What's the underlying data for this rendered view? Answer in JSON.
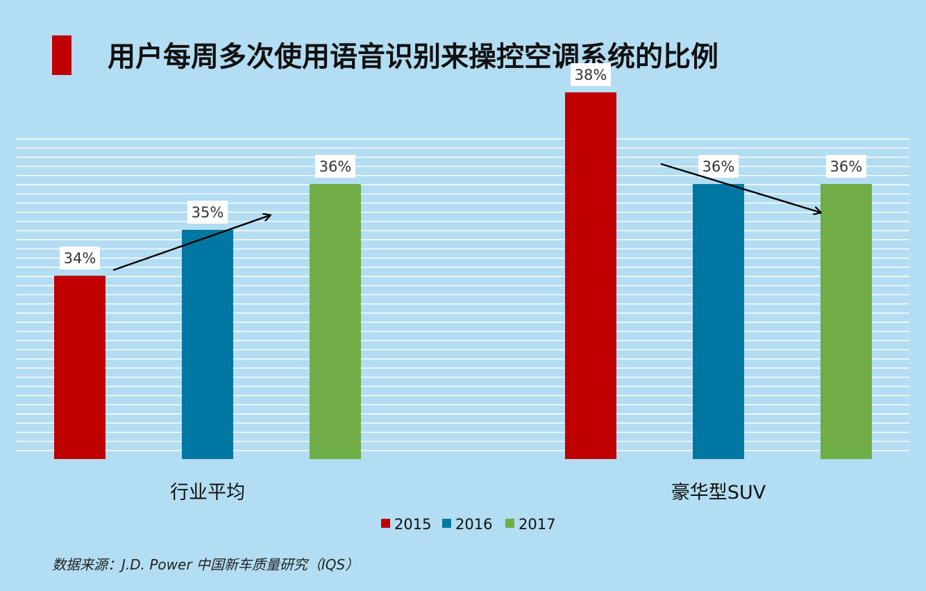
{
  "title": "用户每周多次使用语音识别来操控空调系统的比例",
  "source": "数据来源：J.D. Power 中国新车质量研究（IQS）",
  "colors": {
    "background": "#b3ddf2",
    "accent": "#c00000",
    "gridline": "#ffffff",
    "arrow": "#000000"
  },
  "chart_data": {
    "type": "bar",
    "categories": [
      "行业平均",
      "豪华型SUV"
    ],
    "series": [
      {
        "name": "2015",
        "color": "#c00000",
        "values": [
          34,
          38
        ],
        "labels": [
          "34%",
          "38%"
        ]
      },
      {
        "name": "2016",
        "color": "#0077a3",
        "values": [
          35,
          36
        ],
        "labels": [
          "35%",
          "36%"
        ]
      },
      {
        "name": "2017",
        "color": "#70ad47",
        "values": [
          36,
          36
        ],
        "labels": [
          "36%",
          "36%"
        ]
      }
    ],
    "legend_position": "bottom",
    "grid": true,
    "annotations": [
      {
        "type": "trend-arrow",
        "category": "行业平均",
        "direction": "up"
      },
      {
        "type": "trend-arrow",
        "category": "豪华型SUV",
        "direction": "down"
      }
    ]
  }
}
